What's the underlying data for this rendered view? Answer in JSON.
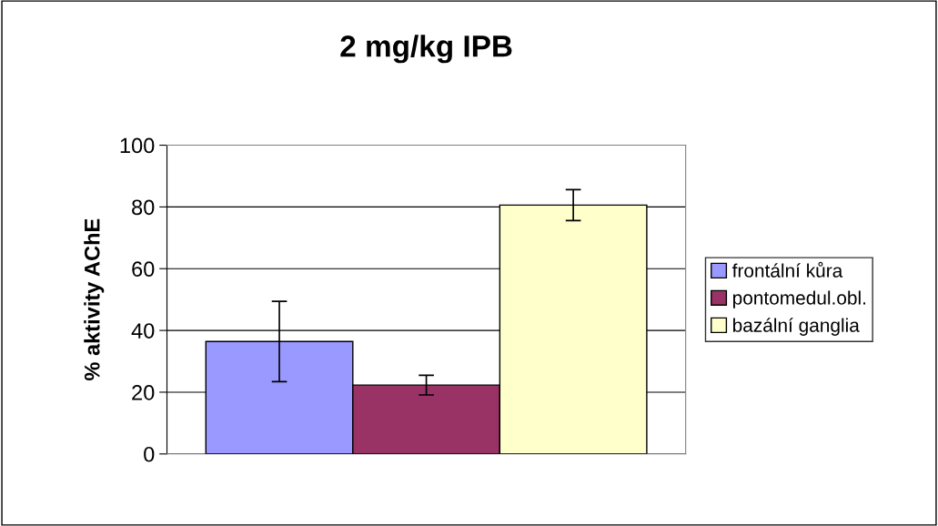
{
  "chart_data": {
    "type": "bar",
    "title": "2 mg/kg IPB",
    "ylabel": "% aktivity AChE",
    "categories": [
      null
    ],
    "series": [
      {
        "name": "frontální kůra",
        "color": "#9999ff",
        "values": [
          36.4
        ],
        "errors": [
          13
        ]
      },
      {
        "name": "pontomedul.obl.",
        "color": "#993366",
        "values": [
          22.3
        ],
        "errors": [
          3.2
        ]
      },
      {
        "name": "bazální ganglia",
        "color": "#ffffcc",
        "values": [
          80.6
        ],
        "errors": [
          5
        ]
      }
    ],
    "ylim": [
      0,
      100
    ],
    "yticks": [
      0,
      20,
      40,
      60,
      80,
      100
    ],
    "grid": "y",
    "legend": "right"
  }
}
